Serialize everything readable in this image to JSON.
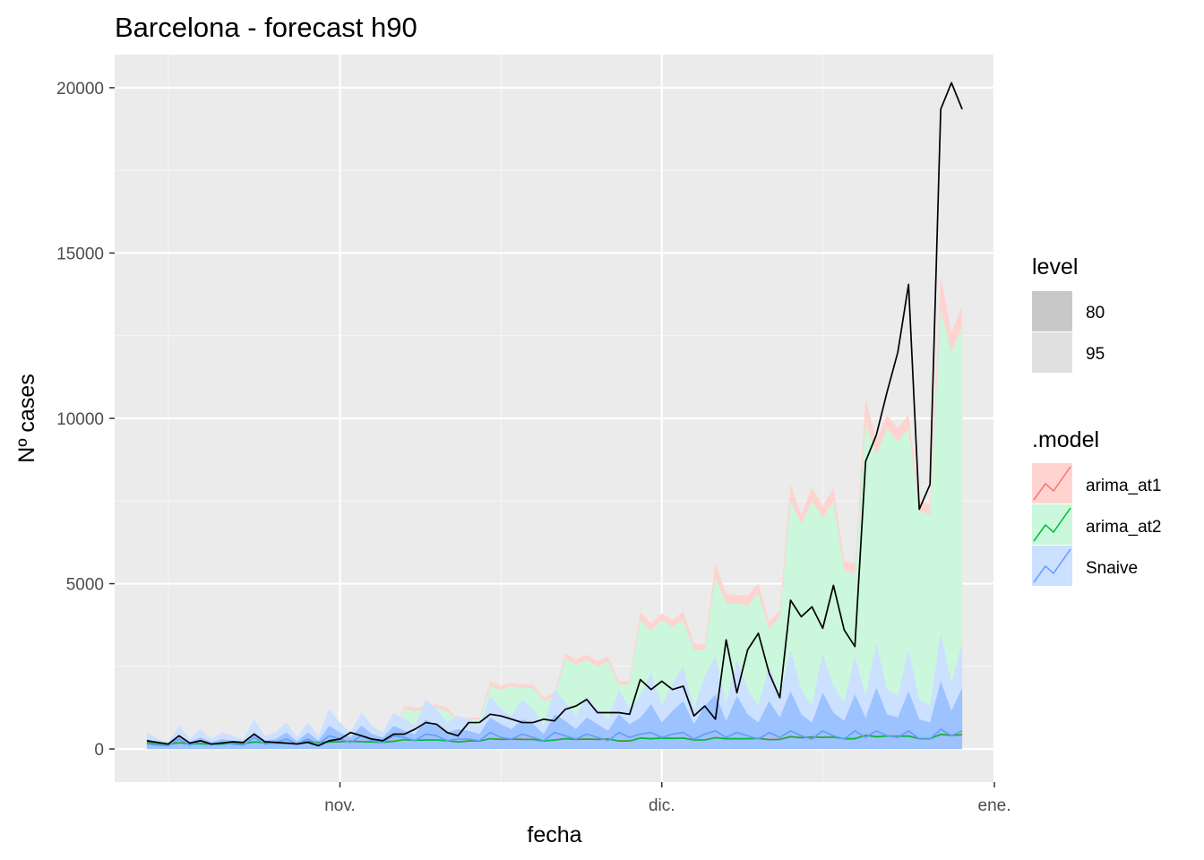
{
  "chart_data": {
    "type": "area",
    "title": "Barcelona - forecast h90",
    "xlabel": "fecha",
    "ylabel": "Nº cases",
    "grid": true,
    "x_range": [
      "2020-10-11",
      "2021-01-01"
    ],
    "ylim": [
      -1000,
      21000
    ],
    "y_ticks": [
      0,
      5000,
      10000,
      15000,
      20000
    ],
    "y_tick_labels": [
      "0",
      "5000",
      "10000",
      "15000",
      "20000"
    ],
    "x_ticks": [
      {
        "date": "2020-11-01",
        "label": "nov."
      },
      {
        "date": "2020-12-01",
        "label": "dic."
      },
      {
        "date": "2021-01-01",
        "label": "ene."
      }
    ],
    "x_minor_ticks": [
      "2020-10-16",
      "2020-11-16",
      "2020-12-16"
    ],
    "start_date": "2020-10-14",
    "actual": [
      250,
      200,
      150,
      400,
      180,
      250,
      150,
      180,
      220,
      200,
      450,
      220,
      200,
      180,
      150,
      200,
      100,
      250,
      300,
      500,
      400,
      300,
      250,
      450,
      450,
      600,
      800,
      750,
      500,
      400,
      800,
      800,
      1050,
      1000,
      900,
      800,
      800,
      900,
      850,
      1200,
      1300,
      1500,
      1100,
      1100,
      1100,
      1050,
      2100,
      1800,
      2050,
      1800,
      1900,
      1000,
      1300,
      900,
      3300,
      1700,
      3000,
      3500,
      2300,
      1550,
      4500,
      4000,
      4300,
      3650,
      4950,
      3600,
      3100,
      8700,
      9500,
      10800,
      12000,
      14050,
      7250,
      8000,
      19350,
      20150,
      19350
    ],
    "legend": {
      "level_title": "level",
      "level_items": [
        {
          "label": "80",
          "color": "#c8c8c8"
        },
        {
          "label": "95",
          "color": "#e0e0e0"
        }
      ],
      "model_title": ".model",
      "model_items": [
        {
          "label": "arima_at1",
          "line": "#f8766d",
          "fill": "#ffd3d0"
        },
        {
          "label": "arima_at2",
          "line": "#00ba38",
          "fill": "#cbf7dc"
        },
        {
          "label": "Snaive",
          "line": "#619cff",
          "fill": "#cce0ff"
        }
      ]
    },
    "series": [
      {
        "name": "arima_at1",
        "color": "#f8766d",
        "fill": "#ffd3d0",
        "hi95": [
          200,
          170,
          150,
          200,
          160,
          170,
          150,
          160,
          180,
          170,
          220,
          200,
          190,
          180,
          170,
          230,
          200,
          300,
          330,
          350,
          340,
          330,
          320,
          380,
          1300,
          1250,
          1300,
          1350,
          1250,
          900,
          950,
          950,
          2050,
          1900,
          2000,
          1950,
          1950,
          1550,
          1700,
          2900,
          2700,
          2850,
          2650,
          2800,
          2050,
          2050,
          4150,
          3800,
          4100,
          3900,
          4150,
          3200,
          3150,
          5600,
          4700,
          4650,
          4650,
          5000,
          3850,
          4200,
          8000,
          7100,
          7900,
          7350,
          7900,
          5700,
          5600,
          10600,
          9350,
          10100,
          9700,
          10100,
          7500,
          7400,
          14300,
          12600,
          13400
        ],
        "point": [
          200,
          170,
          150,
          200,
          160,
          170,
          150,
          160,
          180,
          170,
          220,
          200,
          190,
          180,
          170,
          230,
          200,
          220,
          230,
          240,
          230,
          220,
          210,
          240,
          290,
          270,
          280,
          280,
          260,
          220,
          250,
          250,
          320,
          300,
          310,
          300,
          300,
          250,
          280,
          320,
          300,
          310,
          300,
          310,
          250,
          250,
          340,
          320,
          340,
          330,
          340,
          280,
          280,
          350,
          320,
          320,
          320,
          330,
          290,
          300,
          380,
          350,
          370,
          360,
          370,
          320,
          320,
          420,
          380,
          400,
          390,
          400,
          320,
          320,
          450,
          420,
          440
        ]
      },
      {
        "name": "arima_at2",
        "color": "#00ba38",
        "fill": "#cbf7dc",
        "hi95": [
          190,
          160,
          140,
          190,
          150,
          160,
          140,
          150,
          170,
          160,
          210,
          190,
          180,
          170,
          160,
          220,
          190,
          280,
          310,
          330,
          320,
          310,
          300,
          350,
          1200,
          1150,
          1200,
          1250,
          1150,
          850,
          900,
          900,
          1900,
          1800,
          1900,
          1850,
          1850,
          1450,
          1600,
          2750,
          2550,
          2700,
          2500,
          2650,
          1950,
          1950,
          3900,
          3600,
          3900,
          3700,
          3900,
          3000,
          3000,
          5200,
          4400,
          4400,
          4350,
          4700,
          3650,
          4000,
          7500,
          6800,
          7500,
          7000,
          7500,
          5400,
          5300,
          9900,
          8900,
          9700,
          9300,
          9700,
          7200,
          7100,
          13300,
          12000,
          12800
        ],
        "point": [
          190,
          160,
          140,
          190,
          150,
          160,
          140,
          150,
          170,
          160,
          210,
          190,
          180,
          170,
          160,
          220,
          190,
          210,
          220,
          230,
          220,
          210,
          200,
          230,
          280,
          260,
          270,
          270,
          250,
          210,
          240,
          240,
          310,
          290,
          300,
          290,
          290,
          240,
          270,
          310,
          290,
          300,
          290,
          300,
          240,
          240,
          330,
          310,
          330,
          320,
          330,
          270,
          270,
          340,
          310,
          310,
          310,
          320,
          280,
          290,
          370,
          340,
          360,
          350,
          360,
          310,
          310,
          410,
          370,
          390,
          380,
          390,
          310,
          310,
          440,
          410,
          430
        ]
      },
      {
        "name": "Snaive",
        "color": "#619cff",
        "fill": "#cce0ff",
        "hi95": [
          500,
          300,
          200,
          700,
          300,
          600,
          300,
          500,
          400,
          300,
          900,
          400,
          500,
          800,
          350,
          800,
          400,
          1200,
          800,
          500,
          1100,
          700,
          500,
          1100,
          900,
          700,
          1500,
          1200,
          800,
          1000,
          900,
          700,
          1600,
          1200,
          1000,
          1500,
          1200,
          700,
          1800,
          1400,
          1000,
          1600,
          1200,
          900,
          1800,
          1200,
          1600,
          2300,
          1300,
          2000,
          2500,
          1200,
          2200,
          2800,
          1400,
          2700,
          1800,
          1300,
          2500,
          1600,
          3000,
          1800,
          1300,
          2900,
          1900,
          1400,
          2800,
          1600,
          3200,
          1800,
          1600,
          3000,
          1500,
          1300,
          3500,
          2000,
          3200
        ],
        "hi80": [
          300,
          200,
          150,
          400,
          200,
          350,
          200,
          300,
          250,
          200,
          500,
          250,
          300,
          500,
          230,
          500,
          250,
          700,
          500,
          350,
          700,
          450,
          350,
          700,
          550,
          450,
          900,
          700,
          500,
          600,
          550,
          450,
          950,
          750,
          600,
          900,
          750,
          450,
          1050,
          850,
          600,
          950,
          750,
          550,
          1050,
          750,
          950,
          1350,
          800,
          1150,
          1450,
          750,
          1300,
          1650,
          850,
          1600,
          1050,
          800,
          1450,
          950,
          1750,
          1050,
          800,
          1700,
          1100,
          850,
          1650,
          950,
          1850,
          1050,
          950,
          1750,
          900,
          800,
          2050,
          1150,
          1850
        ],
        "point": [
          150,
          120,
          100,
          300,
          120,
          250,
          120,
          200,
          150,
          120,
          350,
          150,
          200,
          300,
          150,
          300,
          150,
          400,
          300,
          200,
          400,
          250,
          200,
          400,
          350,
          250,
          450,
          400,
          250,
          300,
          300,
          250,
          500,
          350,
          300,
          450,
          350,
          250,
          500,
          400,
          300,
          450,
          350,
          250,
          500,
          350,
          450,
          500,
          350,
          450,
          500,
          300,
          450,
          550,
          350,
          500,
          400,
          300,
          500,
          350,
          550,
          400,
          300,
          550,
          400,
          300,
          550,
          350,
          550,
          400,
          350,
          550,
          300,
          300,
          600,
          400,
          550
        ]
      }
    ]
  }
}
